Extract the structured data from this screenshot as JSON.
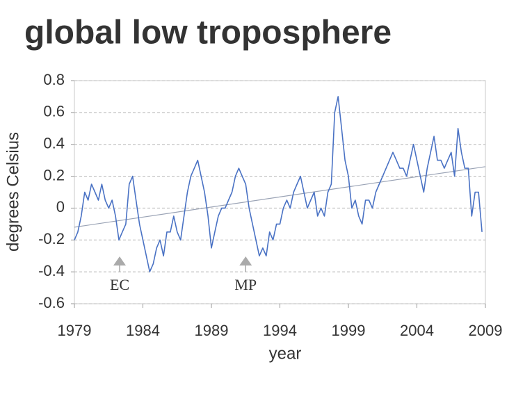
{
  "chart_data": {
    "type": "line",
    "title": "global low troposphere",
    "xlabel": "year",
    "ylabel": "degrees Celsius",
    "x": [
      1979,
      1979.25,
      1979.5,
      1979.75,
      1980,
      1980.25,
      1980.5,
      1980.75,
      1981,
      1981.25,
      1981.5,
      1981.75,
      1982,
      1982.25,
      1982.5,
      1982.75,
      1983,
      1983.25,
      1983.5,
      1983.75,
      1984,
      1984.25,
      1984.5,
      1984.75,
      1985,
      1985.25,
      1985.5,
      1985.75,
      1986,
      1986.25,
      1986.5,
      1986.75,
      1987,
      1987.25,
      1987.5,
      1987.75,
      1988,
      1988.25,
      1988.5,
      1988.75,
      1989,
      1989.25,
      1989.5,
      1989.75,
      1990,
      1990.25,
      1990.5,
      1990.75,
      1991,
      1991.25,
      1991.5,
      1991.75,
      1992,
      1992.25,
      1992.5,
      1992.75,
      1993,
      1993.25,
      1993.5,
      1993.75,
      1994,
      1994.25,
      1994.5,
      1994.75,
      1995,
      1995.25,
      1995.5,
      1995.75,
      1996,
      1996.25,
      1996.5,
      1996.75,
      1997,
      1997.25,
      1997.5,
      1997.75,
      1998,
      1998.25,
      1998.5,
      1998.75,
      1999,
      1999.25,
      1999.5,
      1999.75,
      2000,
      2000.25,
      2000.5,
      2000.75,
      2001,
      2001.25,
      2001.5,
      2001.75,
      2002,
      2002.25,
      2002.5,
      2002.75,
      2003,
      2003.25,
      2003.5,
      2003.75,
      2004,
      2004.25,
      2004.5,
      2004.75,
      2005,
      2005.25,
      2005.5,
      2005.75,
      2006,
      2006.25,
      2006.5,
      2006.75,
      2007,
      2007.25,
      2007.5,
      2007.75,
      2008,
      2008.25,
      2008.5,
      2008.75
    ],
    "values": [
      -0.2,
      -0.15,
      -0.05,
      0.1,
      0.05,
      0.15,
      0.1,
      0.05,
      0.15,
      0.05,
      0.0,
      0.05,
      -0.05,
      -0.2,
      -0.15,
      -0.1,
      0.15,
      0.2,
      0.05,
      -0.1,
      -0.2,
      -0.3,
      -0.4,
      -0.35,
      -0.25,
      -0.2,
      -0.3,
      -0.15,
      -0.15,
      -0.05,
      -0.15,
      -0.2,
      -0.05,
      0.1,
      0.2,
      0.25,
      0.3,
      0.2,
      0.1,
      -0.05,
      -0.25,
      -0.15,
      -0.05,
      0.0,
      0.0,
      0.05,
      0.1,
      0.2,
      0.25,
      0.2,
      0.15,
      0.0,
      -0.1,
      -0.2,
      -0.3,
      -0.25,
      -0.3,
      -0.15,
      -0.2,
      -0.1,
      -0.1,
      0.0,
      0.05,
      0.0,
      0.1,
      0.15,
      0.2,
      0.1,
      0.0,
      0.05,
      0.1,
      -0.05,
      0.0,
      -0.05,
      0.1,
      0.15,
      0.6,
      0.7,
      0.5,
      0.3,
      0.2,
      0.0,
      0.05,
      -0.05,
      -0.1,
      0.05,
      0.05,
      0.0,
      0.1,
      0.15,
      0.2,
      0.25,
      0.3,
      0.35,
      0.3,
      0.25,
      0.25,
      0.2,
      0.3,
      0.4,
      0.3,
      0.2,
      0.1,
      0.25,
      0.35,
      0.45,
      0.3,
      0.3,
      0.25,
      0.3,
      0.35,
      0.2,
      0.5,
      0.35,
      0.25,
      0.25,
      -0.05,
      0.1,
      0.1,
      -0.15
    ],
    "color": "#4a72c4",
    "trend_line": {
      "x": [
        1979,
        2009
      ],
      "values": [
        -0.12,
        0.26
      ],
      "color": "#9aa3b5"
    },
    "annotations": [
      {
        "text": "EC",
        "x": 1982.3
      },
      {
        "text": "MP",
        "x": 1991.5
      }
    ],
    "xlim": [
      1979,
      2009
    ],
    "xticks": [
      1979,
      1984,
      1989,
      1994,
      1999,
      2004,
      2009
    ],
    "ylim": [
      -0.6,
      0.8
    ],
    "yticks": [
      -0.6,
      -0.4,
      -0.2,
      0,
      0.2,
      0.4,
      0.6,
      0.8
    ],
    "grid": true
  }
}
